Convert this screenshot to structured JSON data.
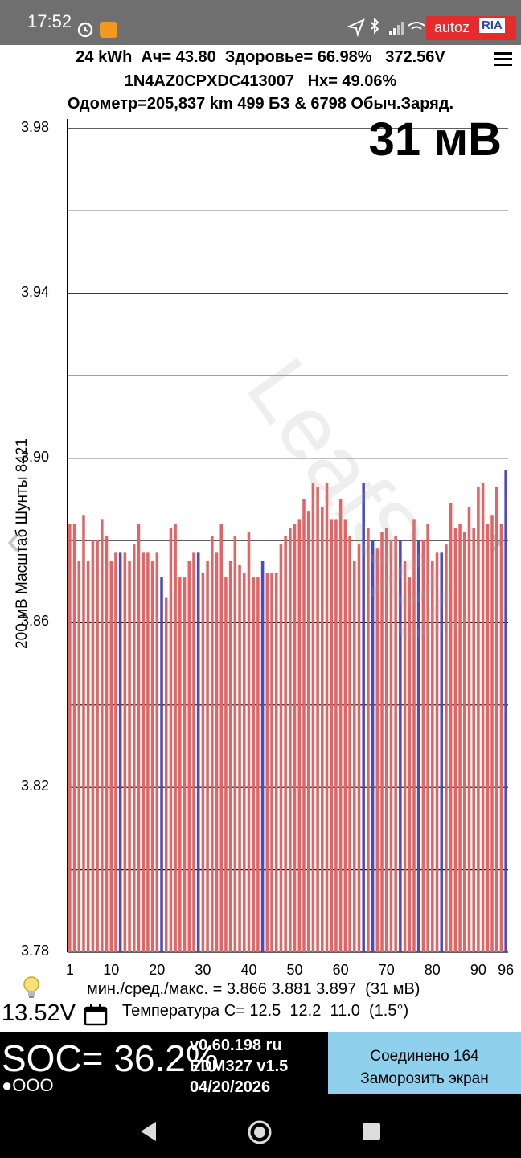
{
  "status_bar": {
    "time": "17:52",
    "badge_text": "autoz",
    "badge_logo": "RIA",
    "icons": [
      "alarm-icon",
      "app-notification-icon",
      "location-icon",
      "bluetooth-icon",
      "signal-icon",
      "wifi-icon"
    ]
  },
  "header": {
    "line1": "24 kWh  Ач= 43.80  Здоровье= 66.98%   372.56V",
    "line2": "1N4AZ0CPXDC413007   Hx= 49.06%",
    "line3": "Одометр=205,837 km 499 БЗ & 6798 Обыч.Заряд.",
    "delta": "31 мВ"
  },
  "chart_axis_label": "200 мВ Масштаб  Шунты 8421",
  "watermark": "LeafSpy",
  "stats": "мин./сред./макс. = 3.866 3.881 3.897  (31 мВ)",
  "voltage": "13.52V",
  "temperature": "Температура С= 12.5  12.2  11.0  (1.5°)",
  "soc": "SOC= 36.2%",
  "soc_dots": "●OOO",
  "version": {
    "line1": "v0.60.198 ru",
    "line2": "EDM327 v1.5",
    "line3": "04/20/2026"
  },
  "connect_button": {
    "line1": "Соединено 164",
    "line2": "Заморозить экран"
  },
  "colors": {
    "bar": "#e26464",
    "bar_shunt": "#4b4bbf",
    "bottom_bg": "#000000",
    "button_bg": "#8fd0ec",
    "status_bg": "#6f6f6f"
  },
  "chart_data": {
    "type": "bar",
    "title": "",
    "xlabel": "",
    "ylabel": "200 мВ Масштаб  Шунты 8421",
    "ylim": [
      3.78,
      3.98
    ],
    "y_ticks": [
      3.78,
      3.82,
      3.86,
      3.9,
      3.94,
      3.98
    ],
    "y_gridlines": [
      3.78,
      3.8,
      3.82,
      3.84,
      3.86,
      3.88,
      3.9,
      3.92,
      3.94,
      3.96,
      3.98
    ],
    "x_ticks": [
      1,
      10,
      20,
      30,
      40,
      50,
      60,
      70,
      80,
      90,
      96
    ],
    "x": [
      1,
      2,
      3,
      4,
      5,
      6,
      7,
      8,
      9,
      10,
      11,
      12,
      13,
      14,
      15,
      16,
      17,
      18,
      19,
      20,
      21,
      22,
      23,
      24,
      25,
      26,
      27,
      28,
      29,
      30,
      31,
      32,
      33,
      34,
      35,
      36,
      37,
      38,
      39,
      40,
      41,
      42,
      43,
      44,
      45,
      46,
      47,
      48,
      49,
      50,
      51,
      52,
      53,
      54,
      55,
      56,
      57,
      58,
      59,
      60,
      61,
      62,
      63,
      64,
      65,
      66,
      67,
      68,
      69,
      70,
      71,
      72,
      73,
      74,
      75,
      76,
      77,
      78,
      79,
      80,
      81,
      82,
      83,
      84,
      85,
      86,
      87,
      88,
      89,
      90,
      91,
      92,
      93,
      94,
      95,
      96
    ],
    "values": [
      3.884,
      3.884,
      3.875,
      3.886,
      3.875,
      3.88,
      3.88,
      3.885,
      3.881,
      3.875,
      3.877,
      3.877,
      3.877,
      3.875,
      3.879,
      3.884,
      3.877,
      3.877,
      3.875,
      3.877,
      3.871,
      3.866,
      3.883,
      3.884,
      3.871,
      3.871,
      3.875,
      3.877,
      3.877,
      3.872,
      3.875,
      3.881,
      3.877,
      3.884,
      3.871,
      3.875,
      3.881,
      3.874,
      3.872,
      3.882,
      3.871,
      3.871,
      3.875,
      3.872,
      3.872,
      3.872,
      3.879,
      3.881,
      3.883,
      3.884,
      3.885,
      3.89,
      3.887,
      3.894,
      3.893,
      3.888,
      3.894,
      3.885,
      3.885,
      3.89,
      3.885,
      3.881,
      3.875,
      3.879,
      3.894,
      3.883,
      3.88,
      3.878,
      3.882,
      3.883,
      3.88,
      3.881,
      3.88,
      3.875,
      3.871,
      3.885,
      3.88,
      3.88,
      3.884,
      3.875,
      3.877,
      3.877,
      3.879,
      3.889,
      3.883,
      3.884,
      3.882,
      3.888,
      3.883,
      3.893,
      3.894,
      3.884,
      3.886,
      3.893,
      3.884,
      3.897
    ],
    "shunt_cells": [
      12,
      21,
      29,
      43,
      65,
      67,
      73,
      77,
      82,
      96
    ]
  }
}
